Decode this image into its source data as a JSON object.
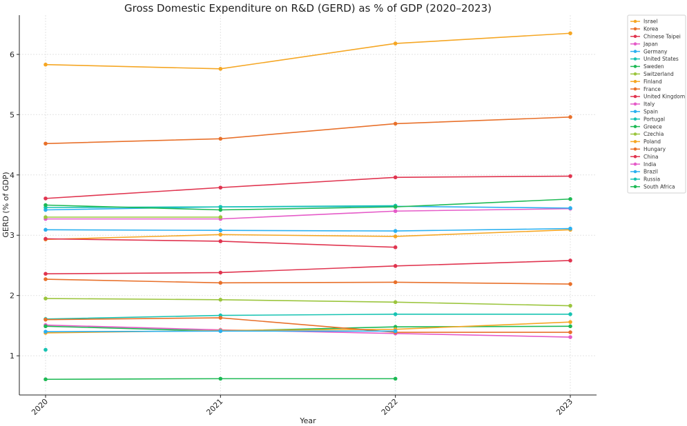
{
  "chart_data": {
    "type": "line",
    "title": "Gross Domestic Expenditure on R&D (GERD) as % of GDP (2020–2023)",
    "xlabel": "Year",
    "ylabel": "GERD (% of GDP)",
    "x": [
      "2020",
      "2021",
      "2022",
      "2023"
    ],
    "xlim": [
      2019.85,
      2023.15
    ],
    "ylim": [
      0.35,
      6.65
    ],
    "yticks": [
      1,
      2,
      3,
      4,
      5,
      6
    ],
    "grid": true,
    "legend_position": "right",
    "series": [
      {
        "name": "Israel",
        "color": "#f5a623",
        "values": [
          5.83,
          5.76,
          6.18,
          6.35
        ]
      },
      {
        "name": "Korea",
        "color": "#e8702a",
        "values": [
          4.52,
          4.6,
          4.85,
          4.96
        ]
      },
      {
        "name": "Chinese Taipei",
        "color": "#e0344f",
        "values": [
          3.61,
          3.79,
          3.96,
          3.98
        ]
      },
      {
        "name": "Japan",
        "color": "#e55ac8",
        "values": [
          3.27,
          3.27,
          3.4,
          3.44
        ]
      },
      {
        "name": "Germany",
        "color": "#2ab0f0",
        "values": [
          3.42,
          3.47,
          3.48,
          3.45
        ]
      },
      {
        "name": "United States",
        "color": "#17c3b2",
        "values": [
          3.46,
          3.47,
          3.49,
          null
        ]
      },
      {
        "name": "Sweden",
        "color": "#1db954",
        "values": [
          3.5,
          3.42,
          3.47,
          3.6
        ]
      },
      {
        "name": "Switzerland",
        "color": "#9bc53d",
        "values": [
          3.3,
          3.3,
          null,
          null
        ]
      },
      {
        "name": "Finland",
        "color": "#f5a623",
        "values": [
          2.93,
          3.01,
          2.98,
          3.09
        ]
      },
      {
        "name": "France",
        "color": "#e8702a",
        "values": [
          2.27,
          2.21,
          2.22,
          2.19
        ]
      },
      {
        "name": "United Kingdom",
        "color": "#e0344f",
        "values": [
          2.94,
          2.9,
          2.8,
          null
        ]
      },
      {
        "name": "Italy",
        "color": "#e55ac8",
        "values": [
          1.51,
          1.43,
          1.37,
          1.31
        ]
      },
      {
        "name": "Spain",
        "color": "#2ab0f0",
        "values": [
          3.09,
          3.08,
          3.07,
          3.11
        ]
      },
      {
        "name": "Portugal",
        "color": "#17c3b2",
        "values": [
          1.61,
          1.67,
          1.69,
          1.69
        ]
      },
      {
        "name": "Greece",
        "color": "#1db954",
        "values": [
          1.49,
          1.41,
          1.48,
          1.49
        ]
      },
      {
        "name": "Czechia",
        "color": "#9bc53d",
        "values": [
          1.95,
          1.93,
          1.89,
          1.83
        ]
      },
      {
        "name": "Poland",
        "color": "#f5a623",
        "values": [
          1.38,
          1.42,
          1.44,
          1.56
        ]
      },
      {
        "name": "Hungary",
        "color": "#e8702a",
        "values": [
          1.6,
          1.63,
          1.39,
          1.39
        ]
      },
      {
        "name": "China",
        "color": "#e0344f",
        "values": [
          2.36,
          2.38,
          2.49,
          2.58
        ]
      },
      {
        "name": "India",
        "color": "#e55ac8",
        "values": [
          null,
          null,
          null,
          null
        ]
      },
      {
        "name": "Brazil",
        "color": "#2ab0f0",
        "values": [
          1.4,
          1.41,
          1.41,
          null
        ]
      },
      {
        "name": "Russia",
        "color": "#17c3b2",
        "values": [
          1.1,
          null,
          null,
          null
        ]
      },
      {
        "name": "South Africa",
        "color": "#1db954",
        "values": [
          0.61,
          0.62,
          0.62,
          null
        ]
      }
    ]
  }
}
